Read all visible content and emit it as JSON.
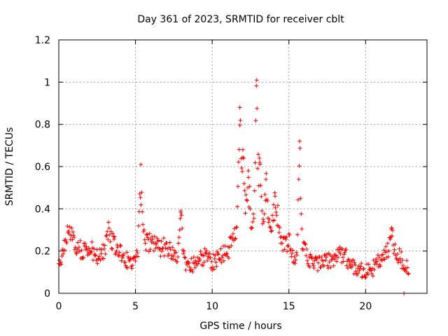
{
  "chart_data": {
    "type": "scatter",
    "title": "Day 361 of 2023, SRMTID for receiver cblt",
    "xlabel": "GPS time / hours",
    "ylabel": "SRMTID / TECUs",
    "xlim": [
      0,
      24
    ],
    "ylim": [
      0,
      1.2
    ],
    "x_ticks": [
      0,
      5,
      10,
      15,
      20
    ],
    "x_tick_labels": [
      "0",
      "5",
      "10",
      "15",
      "20"
    ],
    "y_ticks": [
      0,
      0.2,
      0.4,
      0.6,
      0.8,
      1,
      1.2
    ],
    "y_tick_labels": [
      "0",
      "0.2",
      "0.4",
      "0.6",
      "0.8",
      "1",
      "1.2"
    ],
    "grid": true,
    "legend": "none",
    "series": [
      {
        "name": "SRMTID",
        "color": "#ff0000",
        "marker": "plus",
        "profile": [
          [
            0.0,
            0.14
          ],
          [
            0.25,
            0.2
          ],
          [
            0.5,
            0.27
          ],
          [
            0.75,
            0.3
          ],
          [
            1.0,
            0.24
          ],
          [
            1.5,
            0.2
          ],
          [
            2.0,
            0.21
          ],
          [
            2.5,
            0.18
          ],
          [
            3.0,
            0.2
          ],
          [
            3.25,
            0.32
          ],
          [
            3.5,
            0.24
          ],
          [
            4.0,
            0.2
          ],
          [
            4.5,
            0.15
          ],
          [
            5.0,
            0.16
          ],
          [
            5.25,
            0.2
          ],
          [
            5.5,
            0.24
          ],
          [
            6.0,
            0.24
          ],
          [
            6.5,
            0.22
          ],
          [
            7.0,
            0.22
          ],
          [
            7.5,
            0.2
          ],
          [
            8.0,
            0.18
          ],
          [
            8.5,
            0.12
          ],
          [
            9.0,
            0.14
          ],
          [
            9.5,
            0.18
          ],
          [
            10.0,
            0.15
          ],
          [
            10.5,
            0.17
          ],
          [
            11.0,
            0.2
          ],
          [
            11.5,
            0.27
          ],
          [
            11.9,
            0.36
          ],
          [
            12.2,
            0.4
          ],
          [
            12.6,
            0.3
          ],
          [
            13.0,
            0.32
          ],
          [
            13.3,
            0.3
          ],
          [
            13.6,
            0.36
          ],
          [
            14.0,
            0.3
          ],
          [
            14.3,
            0.36
          ],
          [
            14.6,
            0.22
          ],
          [
            15.0,
            0.24
          ],
          [
            15.5,
            0.13
          ],
          [
            15.8,
            0.22
          ],
          [
            16.2,
            0.18
          ],
          [
            16.5,
            0.14
          ],
          [
            17.0,
            0.14
          ],
          [
            17.5,
            0.15
          ],
          [
            18.0,
            0.17
          ],
          [
            18.5,
            0.19
          ],
          [
            19.0,
            0.14
          ],
          [
            19.5,
            0.12
          ],
          [
            20.0,
            0.1
          ],
          [
            20.5,
            0.12
          ],
          [
            21.0,
            0.16
          ],
          [
            21.5,
            0.2
          ],
          [
            22.0,
            0.2
          ],
          [
            22.5,
            0.14
          ],
          [
            22.8,
            0.12
          ]
        ],
        "spread": 0.055,
        "sample_step_hours": 0.04,
        "x_range": [
          0.0,
          22.8
        ],
        "spikes": [
          {
            "x": 5.35,
            "y": 0.61
          },
          {
            "x": 7.95,
            "y": 0.39
          },
          {
            "x": 11.8,
            "y": 0.88
          },
          {
            "x": 12.0,
            "y": 0.68
          },
          {
            "x": 12.35,
            "y": 0.58
          },
          {
            "x": 12.9,
            "y": 1.01
          },
          {
            "x": 13.1,
            "y": 0.62
          },
          {
            "x": 13.5,
            "y": 0.54
          },
          {
            "x": 14.1,
            "y": 0.46
          },
          {
            "x": 15.7,
            "y": 0.72
          },
          {
            "x": 21.7,
            "y": 0.31
          }
        ],
        "extra_points": [
          {
            "x": 22.5,
            "y": 0.0
          }
        ]
      }
    ]
  }
}
